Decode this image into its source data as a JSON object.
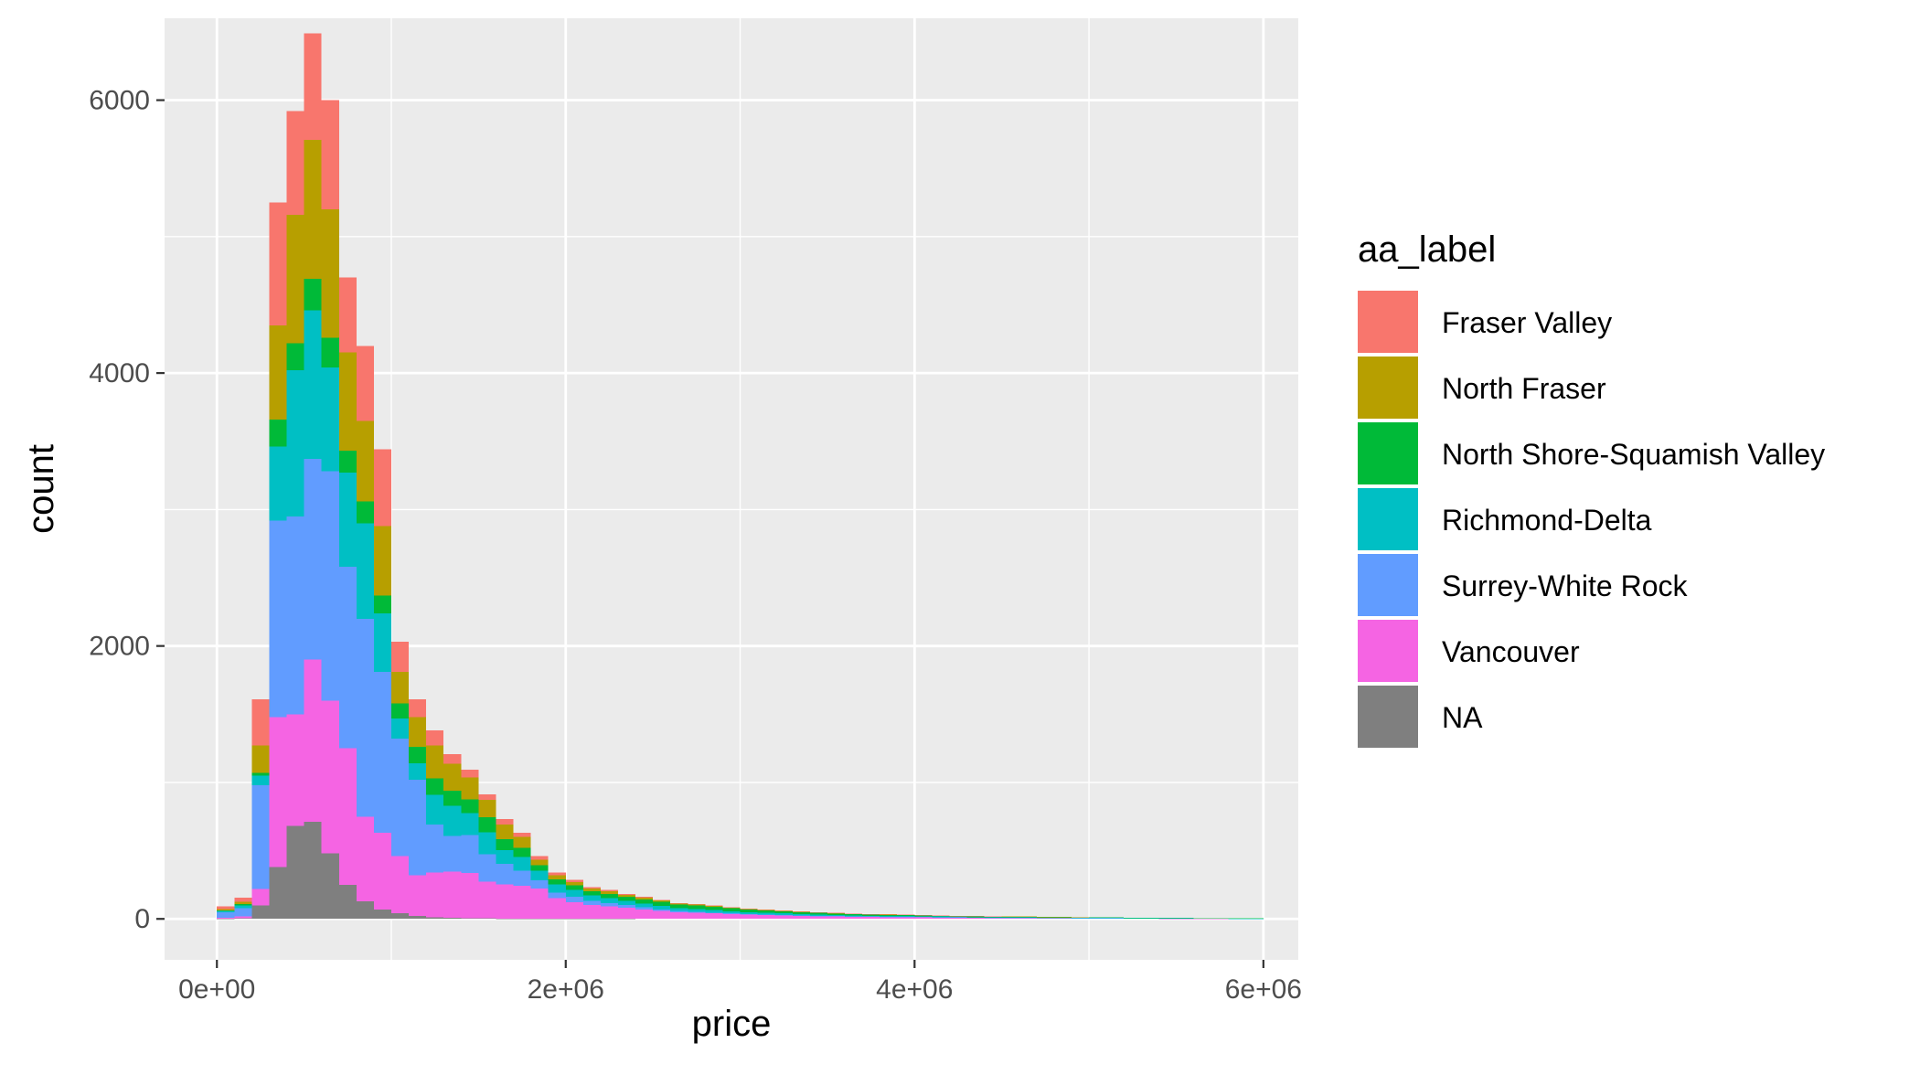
{
  "chart_data": {
    "type": "bar",
    "stacked": true,
    "xlabel": "price",
    "ylabel": "count",
    "xlim": [
      -300000,
      6200000
    ],
    "ylim": [
      -300,
      6600
    ],
    "x_ticks": [
      {
        "value": 0,
        "label": "0e+00"
      },
      {
        "value": 2000000,
        "label": "2e+06"
      },
      {
        "value": 4000000,
        "label": "4e+06"
      },
      {
        "value": 6000000,
        "label": "6e+06"
      }
    ],
    "y_ticks": [
      {
        "value": 0,
        "label": "0"
      },
      {
        "value": 2000,
        "label": "2000"
      },
      {
        "value": 4000,
        "label": "4000"
      },
      {
        "value": 6000,
        "label": "6000"
      }
    ],
    "bin_width": 100000,
    "bin_start": 50000,
    "legend_title": "aa_label",
    "legend_position": "right",
    "grid": true,
    "panel_background": "#ebebeb",
    "series": [
      {
        "name": "NA",
        "color": "#7f7f7f",
        "values": [
          2,
          4,
          100,
          380,
          680,
          710,
          480,
          250,
          130,
          70,
          40,
          20,
          10,
          8,
          5,
          4,
          3,
          2,
          2,
          1,
          1,
          1,
          1,
          1,
          0,
          0,
          0,
          0,
          0,
          0,
          0,
          0,
          0,
          0,
          0,
          0,
          0,
          0,
          0,
          0,
          0,
          0,
          0,
          0,
          0,
          0,
          0,
          0,
          0,
          0,
          0,
          0,
          0,
          0,
          0,
          0,
          0,
          0,
          0,
          0
        ]
      },
      {
        "name": "Vancouver",
        "color": "#f564e3",
        "values": [
          5,
          15,
          120,
          1100,
          820,
          1190,
          1120,
          1000,
          620,
          560,
          420,
          300,
          330,
          340,
          330,
          270,
          250,
          240,
          220,
          150,
          120,
          100,
          90,
          80,
          70,
          60,
          50,
          45,
          40,
          35,
          30,
          28,
          25,
          22,
          20,
          18,
          16,
          15,
          14,
          13,
          12,
          11,
          10,
          9,
          8,
          8,
          7,
          6,
          6,
          5,
          5,
          4,
          4,
          4,
          3,
          3,
          3,
          3,
          2,
          2
        ]
      },
      {
        "name": "Surrey-White Rock",
        "color": "#619cff",
        "values": [
          40,
          60,
          760,
          1440,
          1450,
          1470,
          1680,
          1330,
          1450,
          1180,
          860,
          700,
          350,
          260,
          280,
          200,
          150,
          110,
          60,
          40,
          40,
          30,
          25,
          20,
          15,
          10,
          8,
          7,
          6,
          5,
          5,
          4,
          4,
          3,
          3,
          3,
          2,
          2,
          2,
          2,
          2,
          2,
          1,
          1,
          1,
          1,
          1,
          1,
          1,
          1,
          1,
          1,
          1,
          0,
          0,
          0,
          0,
          0,
          0,
          0
        ]
      },
      {
        "name": "Richmond-Delta",
        "color": "#00bfc4",
        "values": [
          10,
          20,
          70,
          540,
          1070,
          1090,
          760,
          690,
          700,
          430,
          150,
          120,
          220,
          220,
          160,
          160,
          100,
          100,
          70,
          60,
          50,
          40,
          35,
          30,
          28,
          25,
          22,
          20,
          18,
          16,
          14,
          12,
          11,
          10,
          9,
          8,
          7,
          6,
          6,
          5,
          5,
          4,
          4,
          3,
          3,
          3,
          3,
          2,
          2,
          2,
          2,
          2,
          1,
          1,
          1,
          1,
          1,
          1,
          1,
          1
        ]
      },
      {
        "name": "North Shore-Squamish Valley",
        "color": "#00ba38",
        "values": [
          5,
          8,
          20,
          200,
          200,
          230,
          220,
          160,
          160,
          130,
          110,
          120,
          120,
          110,
          100,
          110,
          80,
          70,
          40,
          40,
          35,
          30,
          30,
          30,
          30,
          30,
          25,
          25,
          25,
          22,
          20,
          18,
          16,
          15,
          14,
          12,
          11,
          10,
          9,
          8,
          8,
          7,
          6,
          6,
          5,
          5,
          5,
          4,
          4,
          4,
          4,
          3,
          3,
          3,
          3,
          3,
          2,
          2,
          2,
          2
        ]
      },
      {
        "name": "North Fraser",
        "color": "#b79f00",
        "values": [
          10,
          20,
          200,
          690,
          940,
          1020,
          940,
          720,
          590,
          510,
          230,
          220,
          240,
          200,
          160,
          130,
          110,
          80,
          40,
          30,
          25,
          20,
          20,
          15,
          12,
          10,
          8,
          7,
          6,
          5,
          5,
          4,
          4,
          3,
          3,
          2,
          2,
          2,
          2,
          2,
          1,
          1,
          1,
          1,
          1,
          1,
          1,
          1,
          1,
          1,
          0,
          0,
          0,
          0,
          0,
          0,
          0,
          0,
          0,
          0
        ]
      },
      {
        "name": "Fraser Valley",
        "color": "#f8766d",
        "values": [
          20,
          30,
          340,
          900,
          760,
          780,
          800,
          550,
          550,
          560,
          220,
          130,
          110,
          70,
          60,
          40,
          40,
          30,
          30,
          20,
          15,
          10,
          10,
          8,
          6,
          5,
          4,
          3,
          3,
          2,
          2,
          2,
          2,
          2,
          1,
          1,
          1,
          1,
          1,
          1,
          1,
          1,
          1,
          1,
          1,
          0,
          0,
          0,
          0,
          0,
          0,
          0,
          0,
          0,
          0,
          0,
          0,
          0,
          0,
          0
        ]
      }
    ],
    "legend_order": [
      "Fraser Valley",
      "North Fraser",
      "North Shore-Squamish Valley",
      "Richmond-Delta",
      "Surrey-White Rock",
      "Vancouver",
      "NA"
    ]
  }
}
